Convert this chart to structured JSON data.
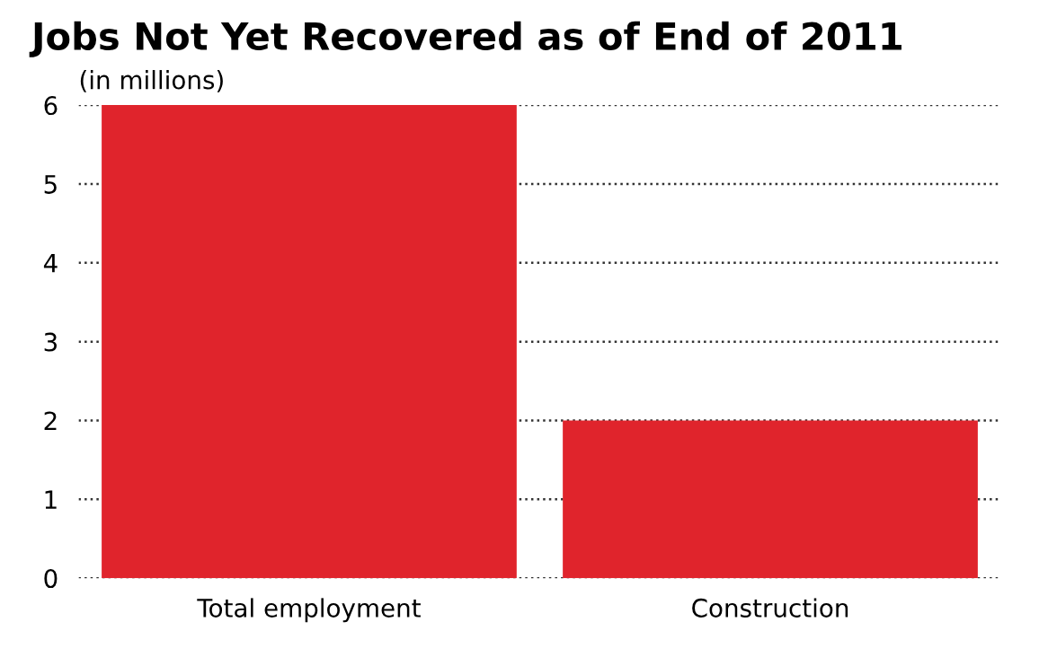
{
  "chart_data": {
    "type": "bar",
    "title": "Jobs Not Yet Recovered as of End of 2011",
    "subtitle": "(in millions)",
    "categories": [
      "Total employment",
      "Construction"
    ],
    "values": [
      6.0,
      2.0
    ],
    "color": "#e0242c",
    "ylim": [
      0,
      6
    ],
    "yticks": [
      0,
      1,
      2,
      3,
      4,
      5,
      6
    ],
    "grid": "y"
  }
}
